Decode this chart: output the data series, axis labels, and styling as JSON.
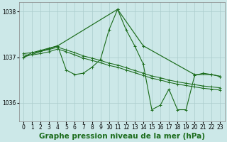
{
  "title": "Graphe pression niveau de la mer (hPa)",
  "xlim": [
    -0.5,
    23.5
  ],
  "ylim": [
    1035.6,
    1038.2
  ],
  "yticks": [
    1036,
    1037,
    1038
  ],
  "xticks": [
    0,
    1,
    2,
    3,
    4,
    5,
    6,
    7,
    8,
    9,
    10,
    11,
    12,
    13,
    14,
    15,
    16,
    17,
    18,
    19,
    20,
    21,
    22,
    23
  ],
  "bg_color": "#cce8e8",
  "grid_color": "#aacccc",
  "line_color": "#1a6b1a",
  "series": [
    {
      "x": [
        0,
        1,
        2,
        3,
        4,
        5,
        6,
        7,
        8,
        9,
        10,
        11,
        12,
        13,
        14,
        15,
        16,
        17,
        18,
        19,
        20,
        21,
        22,
        23
      ],
      "y": [
        1037.0,
        1037.1,
        1037.15,
        1037.2,
        1037.25,
        1036.72,
        1036.62,
        1036.65,
        1036.78,
        1036.95,
        1037.6,
        1038.05,
        1037.6,
        1037.25,
        1036.85,
        1035.85,
        1035.95,
        1036.3,
        1035.85,
        1035.85,
        1036.6,
        1036.65,
        1036.62,
        1036.58
      ]
    },
    {
      "x": [
        0,
        1,
        2,
        3,
        4,
        5,
        6,
        7,
        8,
        9,
        10,
        11,
        12,
        13,
        14,
        15,
        16,
        17,
        18,
        19,
        20,
        21,
        22,
        23
      ],
      "y": [
        1037.05,
        1037.05,
        1037.08,
        1037.12,
        1037.18,
        1037.12,
        1037.05,
        1036.98,
        1036.93,
        1036.88,
        1036.82,
        1036.78,
        1036.72,
        1036.66,
        1036.6,
        1036.54,
        1036.5,
        1036.45,
        1036.41,
        1036.38,
        1036.35,
        1036.32,
        1036.3,
        1036.28
      ]
    },
    {
      "x": [
        0,
        1,
        2,
        3,
        4,
        5,
        6,
        7,
        8,
        9,
        10,
        11,
        12,
        13,
        14,
        15,
        16,
        17,
        18,
        19,
        20,
        21,
        22,
        23
      ],
      "y": [
        1037.08,
        1037.1,
        1037.13,
        1037.17,
        1037.22,
        1037.16,
        1037.1,
        1037.03,
        1036.98,
        1036.93,
        1036.87,
        1036.83,
        1036.77,
        1036.71,
        1036.65,
        1036.59,
        1036.55,
        1036.5,
        1036.46,
        1036.43,
        1036.4,
        1036.37,
        1036.35,
        1036.33
      ]
    },
    {
      "x": [
        0,
        4,
        11,
        14,
        20,
        22,
        23
      ],
      "y": [
        1037.0,
        1037.25,
        1038.05,
        1037.25,
        1036.62,
        1036.62,
        1036.58
      ]
    }
  ],
  "tick_fontsize": 5.5,
  "label_fontsize": 7.5,
  "label_fontweight": "bold"
}
